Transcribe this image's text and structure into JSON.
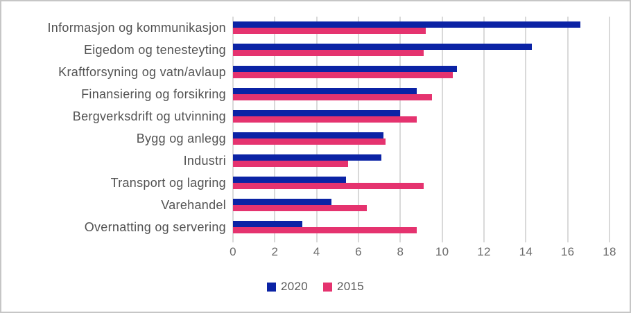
{
  "chart_data": {
    "type": "bar",
    "orientation": "horizontal",
    "title": "",
    "xlabel": "",
    "ylabel": "",
    "categories": [
      "Informasjon og kommunikasjon",
      "Eigedom og tenesteyting",
      "Kraftforsyning og vatn/avlaup",
      "Finansiering og forsikring",
      "Bergverksdrift og utvinning",
      "Bygg og anlegg",
      "Industri",
      "Transport og lagring",
      "Varehandel",
      "Overnatting og servering"
    ],
    "series": [
      {
        "name": "2020",
        "color": "#0b23a5",
        "values": [
          16.6,
          14.3,
          10.7,
          8.8,
          8.0,
          7.2,
          7.1,
          5.4,
          4.7,
          3.3
        ]
      },
      {
        "name": "2015",
        "color": "#e5336f",
        "values": [
          9.2,
          9.1,
          10.5,
          9.5,
          8.8,
          7.3,
          5.5,
          9.1,
          6.4,
          8.8
        ]
      }
    ],
    "xlim": [
      0,
      18
    ],
    "xticks": [
      0,
      2,
      4,
      6,
      8,
      10,
      12,
      14,
      16,
      18
    ],
    "grid": true,
    "gridline_color": "#d9d9d9",
    "legend_position": "bottom"
  },
  "style": {
    "frame_border_color": "#c6c6c6",
    "background_color": "#ffffff",
    "category_label_color": "#525252",
    "tick_label_color": "#6a6a6a",
    "legend_label_color": "#595959"
  }
}
